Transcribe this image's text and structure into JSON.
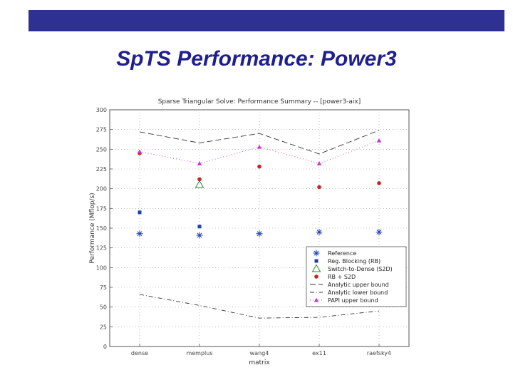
{
  "slide": {
    "title": "SpTS Performance: Power3",
    "bar_color": "#2e3192",
    "title_color": "#1f1f8f"
  },
  "chart_data": {
    "type": "scatter",
    "title": "Sparse Triangular Solve: Performance Summary -- [power3-aix]",
    "xlabel": "matrix",
    "ylabel": "Performance (Mflop/s)",
    "categories": [
      "dense",
      "memplus",
      "wang4",
      "ex11",
      "raefsky4"
    ],
    "ylim": [
      0,
      300
    ],
    "yticks": [
      0,
      25,
      50,
      75,
      100,
      125,
      150,
      175,
      200,
      225,
      250,
      275,
      300
    ],
    "grid": true,
    "legend_position": "lower-right",
    "series": [
      {
        "name": "Reference",
        "kind": "marker",
        "marker": "asterisk",
        "color": "#1f3fb0",
        "values": [
          143,
          141,
          143,
          145,
          145
        ]
      },
      {
        "name": "Reg. Blocking (RB)",
        "kind": "marker",
        "marker": "square",
        "color": "#1f3fb0",
        "values": [
          170,
          152,
          null,
          null,
          null
        ]
      },
      {
        "name": "Switch-to-Dense (S2D)",
        "kind": "marker",
        "marker": "triangle-open",
        "color": "#2f8a2f",
        "values": [
          null,
          205,
          null,
          null,
          null
        ]
      },
      {
        "name": "RB + S2D",
        "kind": "marker",
        "marker": "circle",
        "color": "#d02020",
        "values": [
          245,
          212,
          228,
          202,
          207
        ]
      },
      {
        "name": "Analytic upper bound",
        "kind": "line",
        "dash": "8,4",
        "color": "#333333",
        "values": [
          272,
          258,
          270,
          244,
          274
        ]
      },
      {
        "name": "Analytic lower bound",
        "kind": "line",
        "dash": "6,3,1,3",
        "color": "#333333",
        "values": [
          66,
          52,
          36,
          37,
          45
        ]
      },
      {
        "name": "PAPI upper bound",
        "kind": "line+marker",
        "dash": "1,3",
        "marker": "triangle-filled",
        "color": "#cc33cc",
        "values": [
          247,
          232,
          253,
          232,
          261
        ]
      }
    ]
  }
}
